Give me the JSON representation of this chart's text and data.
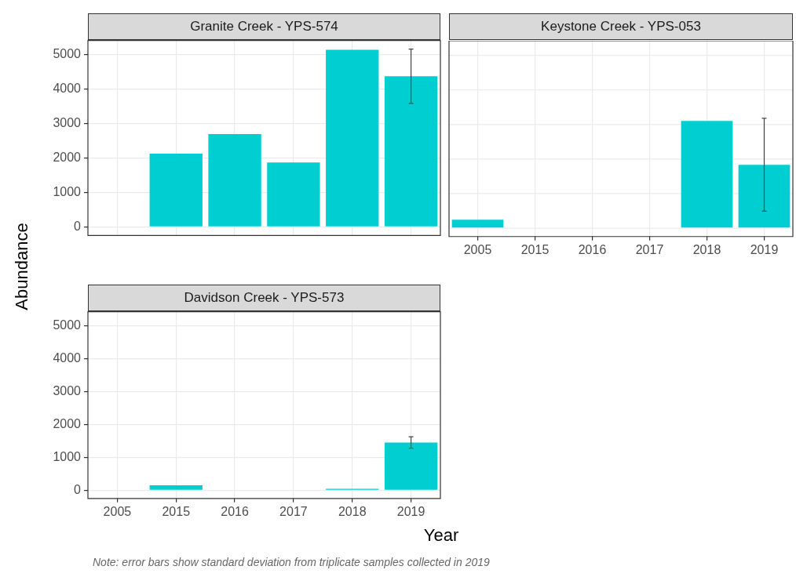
{
  "chart_data": [
    {
      "type": "bar",
      "title": "Granite Creek - YPS-574",
      "ylabel": "Abundance",
      "categories": [
        "2005",
        "2015",
        "2016",
        "2017",
        "2018",
        "2019"
      ],
      "values": [
        null,
        2130,
        2700,
        1870,
        5150,
        4380
      ],
      "errors": [
        null,
        null,
        null,
        null,
        null,
        790
      ],
      "color": "#00ced1",
      "ylim": [
        -250,
        5420
      ],
      "yticks": [
        0,
        1000,
        2000,
        3000,
        4000,
        5000
      ],
      "grid": true,
      "tick_labels": "y"
    },
    {
      "type": "bar",
      "title": "Keystone Creek - YPS-053",
      "categories": [
        "2005",
        "2015",
        "2016",
        "2017",
        "2018",
        "2019"
      ],
      "values": [
        240,
        null,
        null,
        null,
        3100,
        1830
      ],
      "errors": [
        null,
        null,
        null,
        null,
        null,
        1345
      ],
      "color": "#00ced1",
      "ylim": [
        -250,
        5420
      ],
      "yticks": [
        0,
        1000,
        2000,
        3000,
        4000,
        5000
      ],
      "grid": true,
      "tick_labels": "x"
    },
    {
      "type": "bar",
      "title": "Davidson Creek - YPS-573",
      "xlabel": "Year",
      "categories": [
        "2005",
        "2015",
        "2016",
        "2017",
        "2018",
        "2019"
      ],
      "values": [
        null,
        150,
        null,
        null,
        40,
        1450
      ],
      "errors": [
        null,
        null,
        null,
        null,
        null,
        175
      ],
      "color": "#00ced1",
      "ylim": [
        -250,
        5420
      ],
      "yticks": [
        0,
        1000,
        2000,
        3000,
        4000,
        5000
      ],
      "grid": true,
      "annotations": [
        "Note: error bars show standard deviation from triplicate samples collected in 2019"
      ]
    }
  ]
}
